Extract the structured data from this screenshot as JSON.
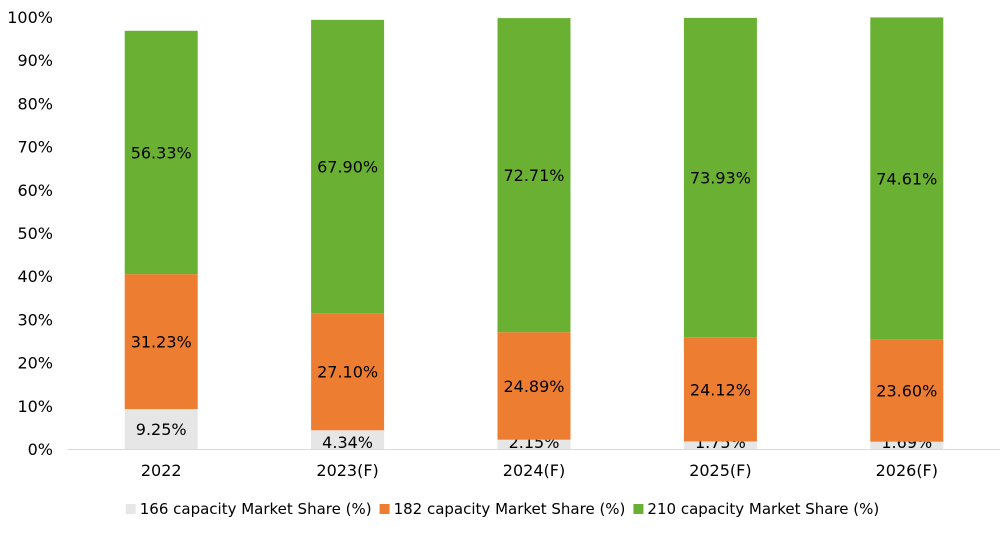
{
  "chart_data": {
    "type": "bar",
    "stacked": true,
    "categories": [
      "2022",
      "2023(F)",
      "2024(F)",
      "2025(F)",
      "2026(F)"
    ],
    "series": [
      {
        "name": "166 capacity Market Share (%)",
        "color": "#e7e6e6",
        "values": [
          9.25,
          4.34,
          2.15,
          1.75,
          1.69
        ],
        "labels": [
          "9.25%",
          "4.34%",
          "2.15%",
          "1.75%",
          "1.69%"
        ]
      },
      {
        "name": "182 capacity Market Share (%)",
        "color": "#ed7d31",
        "values": [
          31.23,
          27.1,
          24.89,
          24.12,
          23.6
        ],
        "labels": [
          "31.23%",
          "27.10%",
          "24.89%",
          "24.12%",
          "23.60%"
        ]
      },
      {
        "name": "210 capacity Market Share (%)",
        "color": "#6ab133",
        "values": [
          56.33,
          67.9,
          72.71,
          73.93,
          74.61
        ],
        "labels": [
          "56.33%",
          "67.90%",
          "72.71%",
          "73.93%",
          "74.61%"
        ]
      }
    ],
    "ylim": [
      0,
      100
    ],
    "yticks": [
      "0%",
      "10%",
      "20%",
      "30%",
      "40%",
      "50%",
      "60%",
      "70%",
      "80%",
      "90%",
      "100%"
    ],
    "grid": false,
    "legend": "bottom"
  }
}
